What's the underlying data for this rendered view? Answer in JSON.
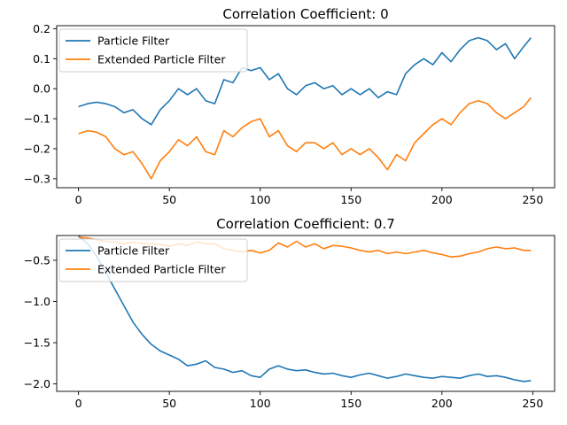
{
  "chart_data": [
    {
      "type": "line",
      "title": "Correlation Coefficient: 0",
      "xlim": [
        -12,
        262
      ],
      "ylim": [
        -0.33,
        0.21
      ],
      "xticks": [
        0,
        50,
        100,
        150,
        200,
        250
      ],
      "yticks": [
        -0.3,
        -0.2,
        -0.1,
        0.0,
        0.1,
        0.2
      ],
      "ytick_labels": [
        "−0.3",
        "−0.2",
        "−0.1",
        "0.0",
        "0.1",
        "0.2"
      ],
      "legend": "top-left",
      "series": [
        {
          "name": "Particle Filter",
          "color": "#1f77b4",
          "x": [
            0,
            5,
            10,
            15,
            20,
            25,
            30,
            35,
            40,
            45,
            50,
            55,
            60,
            65,
            70,
            75,
            80,
            85,
            90,
            95,
            100,
            105,
            110,
            115,
            120,
            125,
            130,
            135,
            140,
            145,
            150,
            155,
            160,
            165,
            170,
            175,
            180,
            185,
            190,
            195,
            200,
            205,
            210,
            215,
            220,
            225,
            230,
            235,
            240,
            245,
            249
          ],
          "y": [
            -0.06,
            -0.05,
            -0.045,
            -0.05,
            -0.06,
            -0.08,
            -0.07,
            -0.1,
            -0.12,
            -0.07,
            -0.04,
            0.0,
            -0.02,
            0.0,
            -0.04,
            -0.05,
            0.03,
            0.02,
            0.07,
            0.06,
            0.07,
            0.03,
            0.05,
            0.0,
            -0.02,
            0.01,
            0.02,
            0.0,
            0.01,
            -0.02,
            0.0,
            -0.02,
            0.0,
            -0.03,
            -0.01,
            -0.02,
            0.05,
            0.08,
            0.1,
            0.08,
            0.12,
            0.09,
            0.13,
            0.16,
            0.17,
            0.16,
            0.13,
            0.15,
            0.1,
            0.14,
            0.17
          ]
        },
        {
          "name": "Extended Particle Filter",
          "color": "#ff7f0e",
          "x": [
            0,
            5,
            10,
            15,
            20,
            25,
            30,
            35,
            40,
            45,
            50,
            55,
            60,
            65,
            70,
            75,
            80,
            85,
            90,
            95,
            100,
            105,
            110,
            115,
            120,
            125,
            130,
            135,
            140,
            145,
            150,
            155,
            160,
            165,
            170,
            175,
            180,
            185,
            190,
            195,
            200,
            205,
            210,
            215,
            220,
            225,
            230,
            235,
            240,
            245,
            249
          ],
          "y": [
            -0.15,
            -0.14,
            -0.145,
            -0.16,
            -0.2,
            -0.22,
            -0.21,
            -0.25,
            -0.3,
            -0.24,
            -0.21,
            -0.17,
            -0.19,
            -0.16,
            -0.21,
            -0.22,
            -0.14,
            -0.16,
            -0.13,
            -0.11,
            -0.1,
            -0.16,
            -0.14,
            -0.19,
            -0.21,
            -0.18,
            -0.18,
            -0.2,
            -0.18,
            -0.22,
            -0.2,
            -0.22,
            -0.2,
            -0.23,
            -0.27,
            -0.22,
            -0.24,
            -0.18,
            -0.15,
            -0.12,
            -0.1,
            -0.12,
            -0.08,
            -0.05,
            -0.04,
            -0.05,
            -0.08,
            -0.1,
            -0.08,
            -0.06,
            -0.03
          ]
        }
      ]
    },
    {
      "type": "line",
      "title": "Correlation Coefficient: 0.7",
      "xlim": [
        -12,
        262
      ],
      "ylim": [
        -2.09,
        -0.2
      ],
      "xticks": [
        0,
        50,
        100,
        150,
        200,
        250
      ],
      "yticks": [
        -2.0,
        -1.5,
        -1.0,
        -0.5
      ],
      "ytick_labels": [
        "−2.0",
        "−1.5",
        "−1.0",
        "−0.5"
      ],
      "legend": "top-left",
      "series": [
        {
          "name": "Particle Filter",
          "color": "#1f77b4",
          "x": [
            0,
            5,
            10,
            15,
            20,
            25,
            30,
            35,
            40,
            45,
            50,
            55,
            60,
            65,
            70,
            75,
            80,
            85,
            90,
            95,
            100,
            105,
            110,
            115,
            120,
            125,
            130,
            135,
            140,
            145,
            150,
            155,
            160,
            165,
            170,
            175,
            180,
            185,
            190,
            195,
            200,
            205,
            210,
            215,
            220,
            225,
            230,
            235,
            240,
            245,
            249
          ],
          "y": [
            -0.2,
            -0.3,
            -0.45,
            -0.65,
            -0.85,
            -1.05,
            -1.25,
            -1.4,
            -1.52,
            -1.6,
            -1.65,
            -1.7,
            -1.78,
            -1.76,
            -1.72,
            -1.8,
            -1.82,
            -1.86,
            -1.84,
            -1.9,
            -1.92,
            -1.82,
            -1.78,
            -1.82,
            -1.84,
            -1.83,
            -1.86,
            -1.88,
            -1.87,
            -1.9,
            -1.92,
            -1.89,
            -1.87,
            -1.9,
            -1.93,
            -1.91,
            -1.88,
            -1.9,
            -1.92,
            -1.93,
            -1.91,
            -1.92,
            -1.93,
            -1.9,
            -1.88,
            -1.91,
            -1.9,
            -1.92,
            -1.95,
            -1.97,
            -1.96
          ]
        },
        {
          "name": "Extended Particle Filter",
          "color": "#ff7f0e",
          "x": [
            0,
            5,
            10,
            15,
            20,
            25,
            30,
            35,
            40,
            45,
            50,
            55,
            60,
            65,
            70,
            75,
            80,
            85,
            90,
            95,
            100,
            105,
            110,
            115,
            120,
            125,
            130,
            135,
            140,
            145,
            150,
            155,
            160,
            165,
            170,
            175,
            180,
            185,
            190,
            195,
            200,
            205,
            210,
            215,
            220,
            225,
            230,
            235,
            240,
            245,
            249
          ],
          "y": [
            -0.22,
            -0.23,
            -0.25,
            -0.27,
            -0.28,
            -0.3,
            -0.28,
            -0.3,
            -0.3,
            -0.31,
            -0.33,
            -0.3,
            -0.32,
            -0.28,
            -0.3,
            -0.3,
            -0.36,
            -0.38,
            -0.4,
            -0.38,
            -0.41,
            -0.38,
            -0.29,
            -0.34,
            -0.27,
            -0.34,
            -0.3,
            -0.36,
            -0.32,
            -0.33,
            -0.35,
            -0.38,
            -0.4,
            -0.38,
            -0.42,
            -0.4,
            -0.42,
            -0.4,
            -0.38,
            -0.41,
            -0.43,
            -0.46,
            -0.45,
            -0.42,
            -0.4,
            -0.36,
            -0.34,
            -0.36,
            -0.35,
            -0.38,
            -0.38
          ]
        }
      ]
    }
  ]
}
